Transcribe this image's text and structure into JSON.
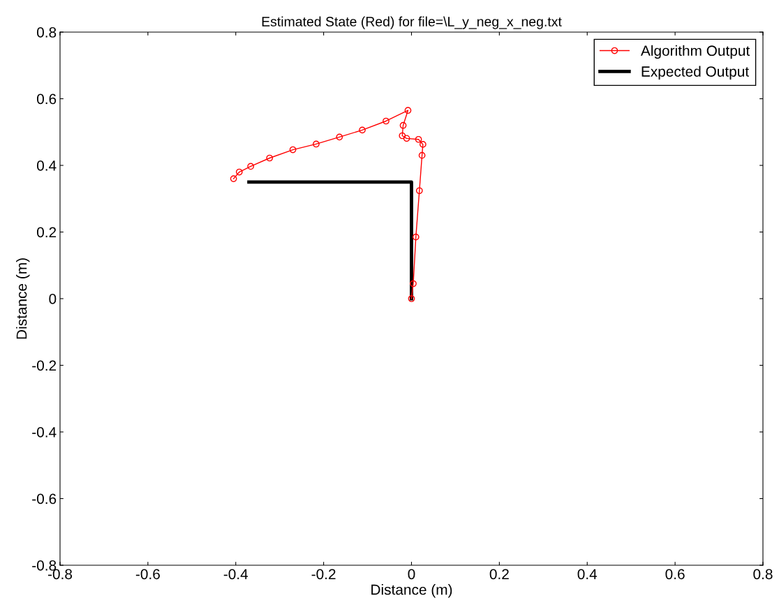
{
  "chart_data": {
    "type": "line",
    "title": "Estimated State (Red) for file=\\L_y_neg_x_neg.txt",
    "xlabel": "Distance (m)",
    "ylabel": "Distance (m)",
    "xlim": [
      -0.8,
      0.8
    ],
    "xticks": [
      -0.8,
      -0.6,
      -0.4,
      -0.2,
      0,
      0.2,
      0.4,
      0.6,
      0.8
    ],
    "ylim": [
      -0.8,
      0.8
    ],
    "yticks": [
      -0.8,
      -0.6,
      -0.4,
      -0.2,
      0,
      0.2,
      0.4,
      0.6,
      0.8
    ],
    "grid": false,
    "legend": "top right",
    "series": [
      {
        "name": "Algorithm Output",
        "color": "#ff0000",
        "marker": "circle",
        "x": [
          0,
          0.004,
          0.01,
          0.018,
          0.024,
          0.026,
          0.016,
          -0.011,
          -0.021,
          -0.019,
          -0.008,
          -0.058,
          -0.112,
          -0.164,
          -0.217,
          -0.27,
          -0.323,
          -0.366,
          -0.392,
          -0.405
        ],
        "values": [
          0,
          0.045,
          0.185,
          0.324,
          0.43,
          0.463,
          0.478,
          0.481,
          0.489,
          0.52,
          0.565,
          0.533,
          0.506,
          0.485,
          0.464,
          0.447,
          0.422,
          0.397,
          0.38,
          0.36
        ]
      },
      {
        "name": "Expected Output",
        "color": "#000000",
        "marker": "none",
        "x": [
          -0.37,
          0,
          0
        ],
        "values": [
          0.35,
          0.35,
          0
        ]
      }
    ]
  }
}
